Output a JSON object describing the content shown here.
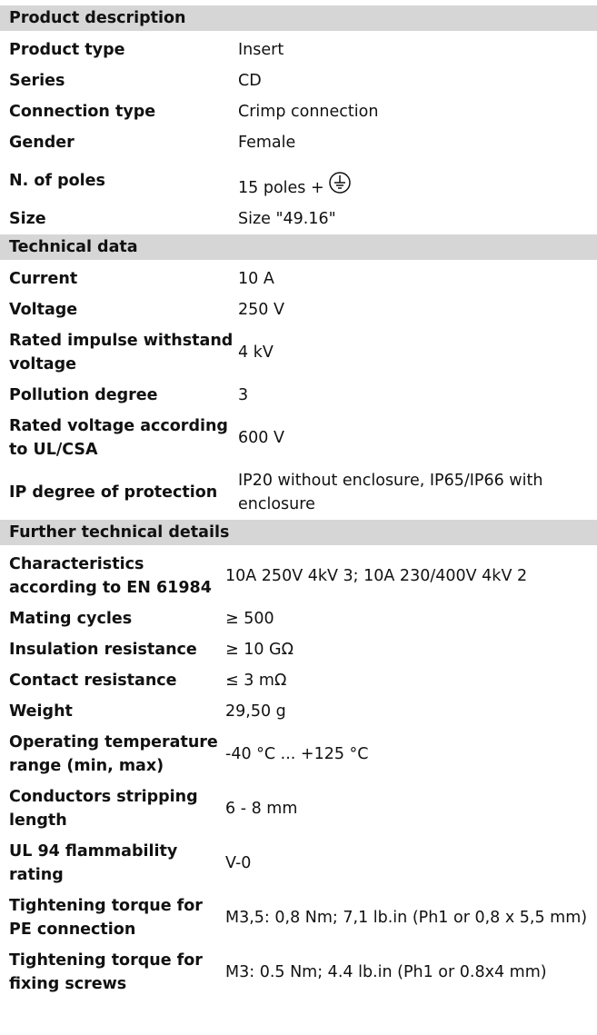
{
  "sections": [
    {
      "title": "Product description",
      "rows": [
        [
          "Product type",
          "Insert"
        ],
        [
          "Series",
          "CD"
        ],
        [
          "Connection type",
          "Crimp connection"
        ],
        [
          "Gender",
          "Female"
        ],
        [
          "N. of poles",
          "15 poles +"
        ],
        [
          "Size",
          "Size \"49.16\""
        ]
      ]
    },
    {
      "title": "Technical data",
      "rows": [
        [
          "Current",
          "10 A"
        ],
        [
          "Voltage",
          "250  V"
        ],
        [
          "Rated impulse withstand voltage",
          "4 kV"
        ],
        [
          "Pollution degree",
          "3"
        ],
        [
          "Rated voltage according to UL/CSA",
          "600 V"
        ],
        [
          "IP degree of protection",
          "IP20 without enclosure, IP65/IP66 with enclosure"
        ]
      ]
    },
    {
      "title": "Further technical details",
      "rows": [
        [
          "Characteristics according to EN 61984",
          "10A 250V 4kV 3; 10A 230/400V 4kV 2"
        ],
        [
          "Mating cycles",
          "≥ 500"
        ],
        [
          "Insulation resistance",
          "≥ 10 GΩ"
        ],
        [
          "Contact resistance",
          "≤ 3 mΩ"
        ],
        [
          "Weight",
          "29,50 g"
        ],
        [
          "Operating temperature range (min, max)",
          "-40 °C ... +125 °C"
        ],
        [
          "Conductors stripping length",
          "6 - 8 mm"
        ],
        [
          "UL 94 flammability rating",
          "V-0"
        ],
        [
          "Tightening torque for PE connection",
          "M3,5: 0,8 Nm; 7,1 lb.in (Ph1 or 0,8 x 5,5 mm)"
        ],
        [
          "Tightening torque for fixing screws",
          "M3: 0.5 Nm; 4.4 lb.in (Ph1 or 0.8x4 mm)"
        ]
      ]
    }
  ]
}
